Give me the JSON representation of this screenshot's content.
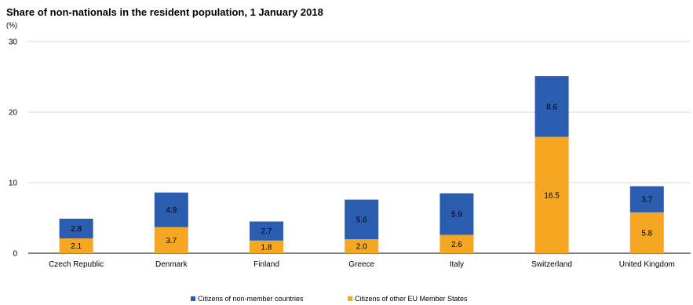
{
  "chart_data": {
    "type": "bar",
    "stacked": true,
    "title": "Share of non-nationals in the resident population, 1 January 2018",
    "unit_label": "(%)",
    "xlabel": "",
    "ylabel": "",
    "ylim": [
      0,
      30
    ],
    "yticks": [
      0,
      10,
      20,
      30
    ],
    "grid": true,
    "legend_position": "bottom",
    "categories": [
      "Czech Republic",
      "Denmark",
      "Finland",
      "Greece",
      "Italy",
      "Switzerland",
      "United Kingdom"
    ],
    "series": [
      {
        "name": "Citizens of other EU Member States",
        "color": "#f5a623",
        "values": [
          2.1,
          3.7,
          1.8,
          2.0,
          2.6,
          16.5,
          5.8
        ],
        "labels": [
          "2.1",
          "3.7",
          "1.8",
          "2.0",
          "2.6",
          "16.5",
          "5.8"
        ]
      },
      {
        "name": "Citizens of non-member countries",
        "color": "#2a5db0",
        "values": [
          2.8,
          4.9,
          2.7,
          5.6,
          5.9,
          8.6,
          3.7
        ],
        "labels": [
          "2.8",
          "4.9",
          "2.7",
          "5.6",
          "5.9",
          "8.6",
          "3.7"
        ]
      }
    ],
    "legend_order": [
      1,
      0
    ]
  }
}
